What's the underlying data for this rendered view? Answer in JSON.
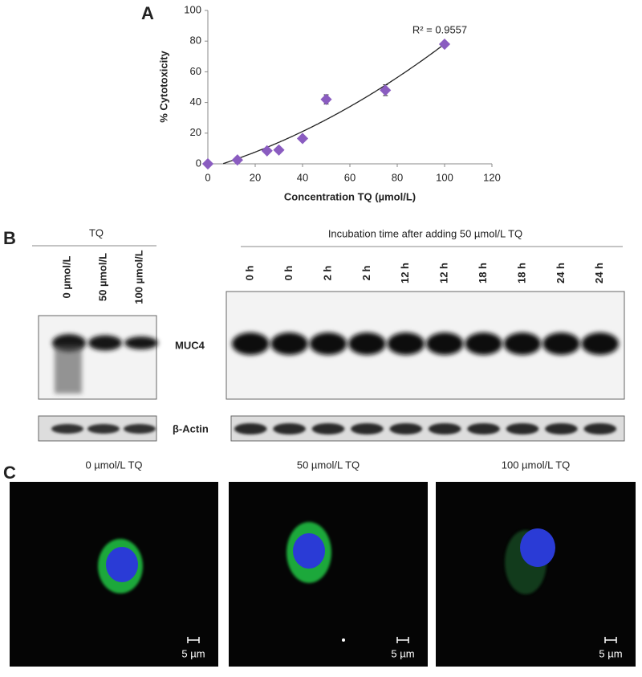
{
  "chart_data": {
    "type": "scatter",
    "panel_label": "A",
    "x": [
      0,
      12.5,
      25,
      30,
      40,
      50,
      75,
      100
    ],
    "values": [
      0,
      2.5,
      8.5,
      9,
      16.5,
      42,
      48,
      78
    ],
    "errors": [
      0,
      1,
      1,
      1.5,
      1,
      3,
      3.5,
      0.5
    ],
    "color": "#8a5cc0",
    "trendline": "polynomial",
    "annotation": "R² = 0.9557",
    "xlabel": "Concentration TQ (µmol/L)",
    "ylabel": "% Cytotoxicity",
    "xlim": [
      0,
      120
    ],
    "xticks": [
      0,
      20,
      40,
      60,
      80,
      100,
      120
    ],
    "ylim": [
      0,
      100
    ],
    "yticks": [
      0,
      20,
      40,
      60,
      80,
      100
    ]
  },
  "panel_b": {
    "label": "B",
    "tq_header": "TQ",
    "tq_lanes": [
      "0 µmol/L",
      "50 µmol/L",
      "100 µmol/L"
    ],
    "time_header": "Incubation time after adding 50 µmol/L TQ",
    "time_lanes": [
      "0 h",
      "0 h",
      "2 h",
      "2 h",
      "12 h",
      "12 h",
      "18 h",
      "18 h",
      "24 h",
      "24 h"
    ],
    "muc4": "MUC4",
    "actin": "β-Actin"
  },
  "panel_c": {
    "label": "C",
    "images": [
      {
        "title": "0 µmol/L TQ",
        "scale": "5 µm"
      },
      {
        "title": "50 µmol/L TQ",
        "scale": "5 µm"
      },
      {
        "title": "100 µmol/L TQ",
        "scale": "5 µm"
      }
    ]
  }
}
